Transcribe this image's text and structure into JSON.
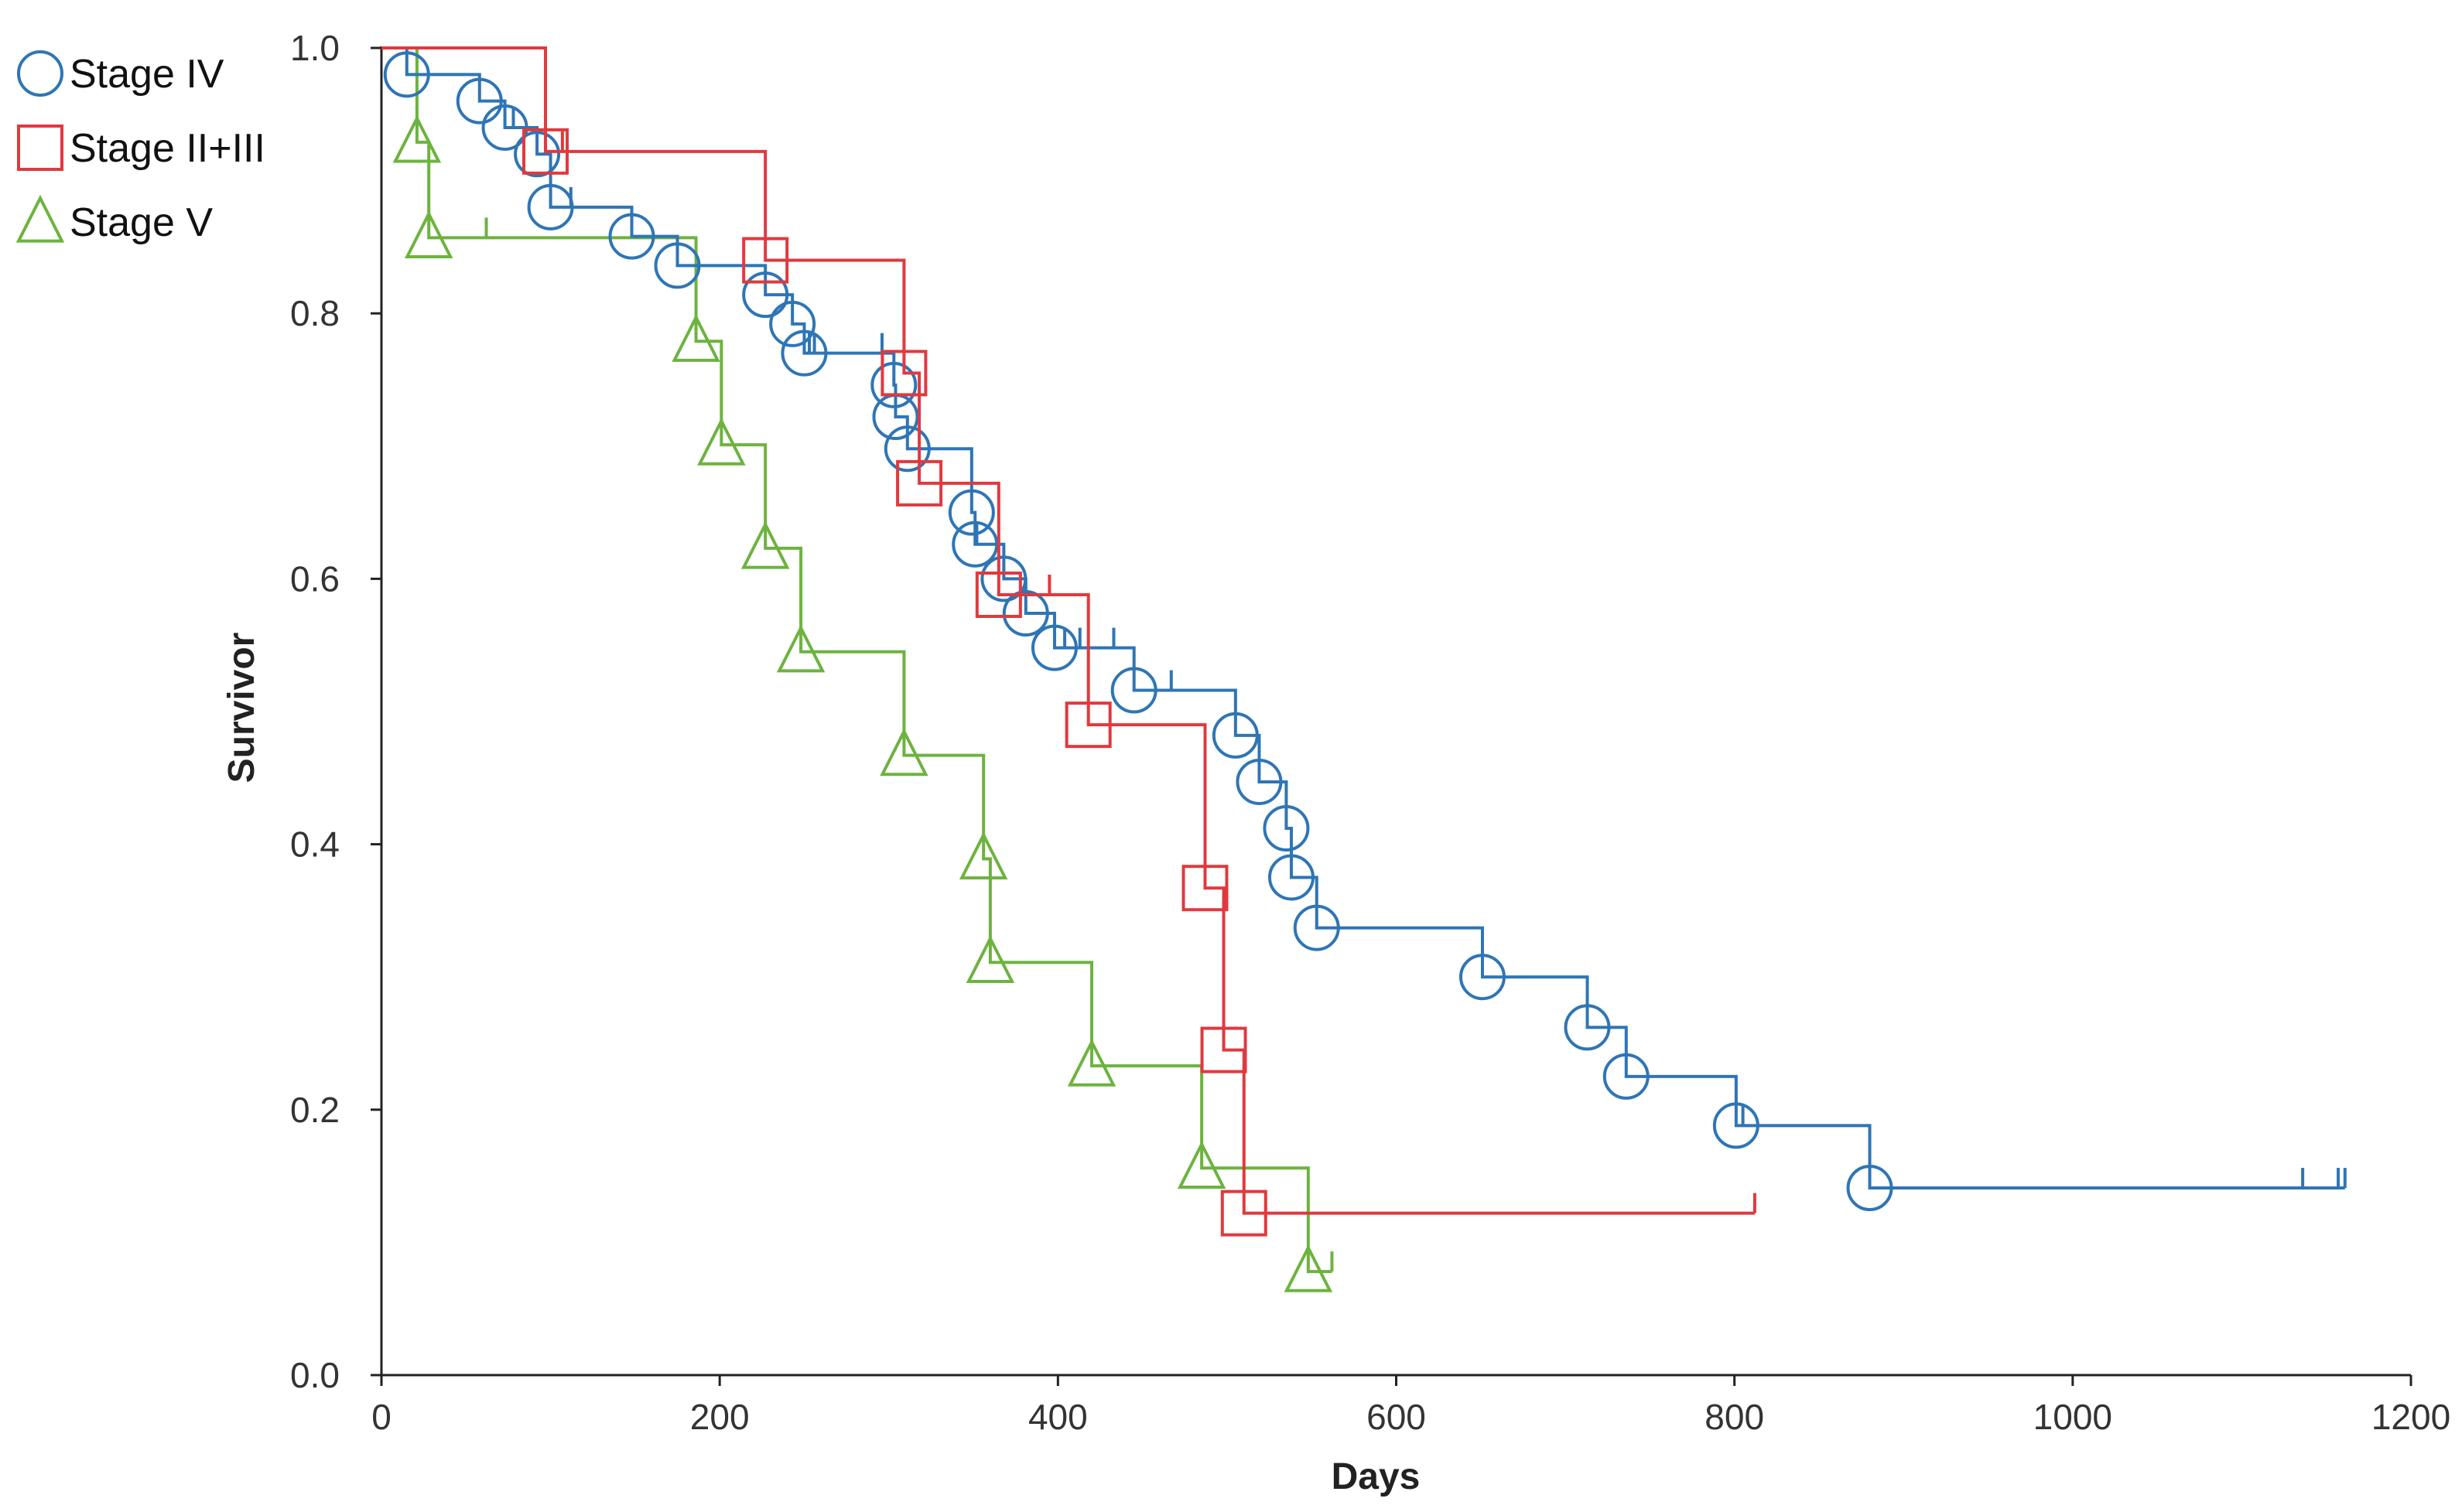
{
  "chart_data": {
    "type": "line",
    "subtype": "kaplan-meier-step",
    "title": "",
    "xlabel": "Days",
    "ylabel": "Survivor",
    "xlim": [
      0,
      1200
    ],
    "ylim": [
      0,
      1.0
    ],
    "x_ticks": [
      0,
      200,
      400,
      600,
      800,
      1000,
      1200
    ],
    "x_tick_labels": [
      "0",
      "200",
      "400",
      "600",
      "800",
      "1000",
      "1200"
    ],
    "y_ticks": [
      0,
      0.2,
      0.4,
      0.6,
      0.8,
      1.0
    ],
    "y_tick_labels": [
      "0.0",
      "0.2",
      "0.4",
      "0.6",
      "0.8",
      "1.0"
    ],
    "grid": false,
    "legend_position": "top-left",
    "series": [
      {
        "name": "Stage IV",
        "marker": "circle",
        "color": "#2E75B6",
        "events": [
          {
            "x": 15,
            "y": 0.98
          },
          {
            "x": 58,
            "y": 0.96
          },
          {
            "x": 73,
            "y": 0.94
          },
          {
            "x": 92,
            "y": 0.92
          },
          {
            "x": 100,
            "y": 0.88
          },
          {
            "x": 148,
            "y": 0.858
          },
          {
            "x": 175,
            "y": 0.836
          },
          {
            "x": 227,
            "y": 0.814
          },
          {
            "x": 243,
            "y": 0.792
          },
          {
            "x": 250,
            "y": 0.77
          },
          {
            "x": 303,
            "y": 0.746
          },
          {
            "x": 304,
            "y": 0.722
          },
          {
            "x": 311,
            "y": 0.698
          },
          {
            "x": 349,
            "y": 0.65
          },
          {
            "x": 351,
            "y": 0.626
          },
          {
            "x": 368,
            "y": 0.6
          },
          {
            "x": 381,
            "y": 0.574
          },
          {
            "x": 398,
            "y": 0.548
          },
          {
            "x": 445,
            "y": 0.516
          },
          {
            "x": 505,
            "y": 0.482
          },
          {
            "x": 519,
            "y": 0.447
          },
          {
            "x": 535,
            "y": 0.412
          },
          {
            "x": 538,
            "y": 0.375
          },
          {
            "x": 553,
            "y": 0.337
          },
          {
            "x": 651,
            "y": 0.3
          },
          {
            "x": 713,
            "y": 0.262
          },
          {
            "x": 736,
            "y": 0.225
          },
          {
            "x": 801,
            "y": 0.188
          },
          {
            "x": 880,
            "y": 0.141
          }
        ],
        "censored": [
          {
            "x": 78,
            "y": 0.94
          },
          {
            "x": 112,
            "y": 0.88
          },
          {
            "x": 253,
            "y": 0.77
          },
          {
            "x": 256,
            "y": 0.77
          },
          {
            "x": 296,
            "y": 0.77
          },
          {
            "x": 352,
            "y": 0.626
          },
          {
            "x": 404,
            "y": 0.548
          },
          {
            "x": 413,
            "y": 0.548
          },
          {
            "x": 433,
            "y": 0.548
          },
          {
            "x": 467,
            "y": 0.516
          },
          {
            "x": 805,
            "y": 0.188
          },
          {
            "x": 1136,
            "y": 0.141
          },
          {
            "x": 1157,
            "y": 0.141
          },
          {
            "x": 1161,
            "y": 0.141
          }
        ],
        "end_x": 1161
      },
      {
        "name": "Stage II+III",
        "marker": "square",
        "color": "#E0393E",
        "events": [
          {
            "x": 97,
            "y": 0.922
          },
          {
            "x": 227,
            "y": 0.84
          },
          {
            "x": 309,
            "y": 0.755
          },
          {
            "x": 318,
            "y": 0.672
          },
          {
            "x": 365,
            "y": 0.588
          },
          {
            "x": 418,
            "y": 0.49
          },
          {
            "x": 487,
            "y": 0.367
          },
          {
            "x": 498,
            "y": 0.245
          },
          {
            "x": 510,
            "y": 0.122
          }
        ],
        "censored": [
          {
            "x": 107,
            "y": 0.922
          },
          {
            "x": 395,
            "y": 0.588
          },
          {
            "x": 812,
            "y": 0.122
          }
        ],
        "end_x": 812
      },
      {
        "name": "Stage V",
        "marker": "triangle",
        "color": "#6DB33F",
        "events": [
          {
            "x": 21,
            "y": 0.929
          },
          {
            "x": 28,
            "y": 0.857
          },
          {
            "x": 186,
            "y": 0.779
          },
          {
            "x": 201,
            "y": 0.701
          },
          {
            "x": 227,
            "y": 0.623
          },
          {
            "x": 248,
            "y": 0.545
          },
          {
            "x": 309,
            "y": 0.467
          },
          {
            "x": 356,
            "y": 0.389
          },
          {
            "x": 360,
            "y": 0.311
          },
          {
            "x": 420,
            "y": 0.233
          },
          {
            "x": 485,
            "y": 0.156
          },
          {
            "x": 548,
            "y": 0.078
          }
        ],
        "censored": [
          {
            "x": 62,
            "y": 0.857
          },
          {
            "x": 562,
            "y": 0.078
          }
        ],
        "end_x": 562
      }
    ]
  }
}
